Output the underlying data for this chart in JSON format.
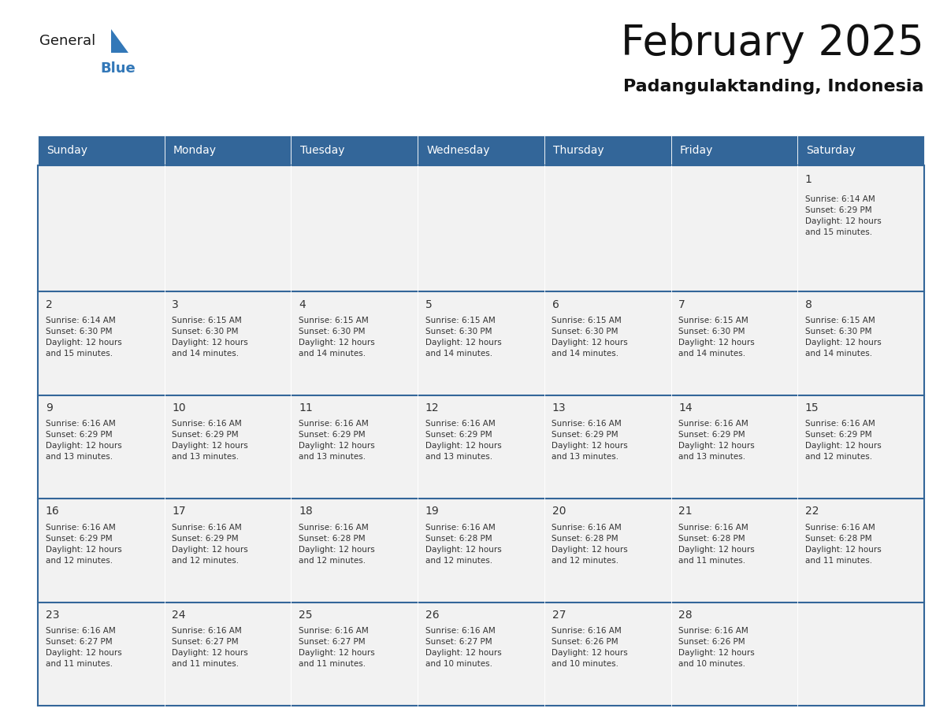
{
  "title": "February 2025",
  "subtitle": "Padangulaktanding, Indonesia",
  "header_bg": "#336699",
  "header_text": "#ffffff",
  "cell_bg": "#f2f2f2",
  "border_color": "#336699",
  "text_color": "#333333",
  "days_of_week": [
    "Sunday",
    "Monday",
    "Tuesday",
    "Wednesday",
    "Thursday",
    "Friday",
    "Saturday"
  ],
  "weeks": [
    [
      {
        "day": null,
        "info": null
      },
      {
        "day": null,
        "info": null
      },
      {
        "day": null,
        "info": null
      },
      {
        "day": null,
        "info": null
      },
      {
        "day": null,
        "info": null
      },
      {
        "day": null,
        "info": null
      },
      {
        "day": 1,
        "info": "Sunrise: 6:14 AM\nSunset: 6:29 PM\nDaylight: 12 hours\nand 15 minutes."
      }
    ],
    [
      {
        "day": 2,
        "info": "Sunrise: 6:14 AM\nSunset: 6:30 PM\nDaylight: 12 hours\nand 15 minutes."
      },
      {
        "day": 3,
        "info": "Sunrise: 6:15 AM\nSunset: 6:30 PM\nDaylight: 12 hours\nand 14 minutes."
      },
      {
        "day": 4,
        "info": "Sunrise: 6:15 AM\nSunset: 6:30 PM\nDaylight: 12 hours\nand 14 minutes."
      },
      {
        "day": 5,
        "info": "Sunrise: 6:15 AM\nSunset: 6:30 PM\nDaylight: 12 hours\nand 14 minutes."
      },
      {
        "day": 6,
        "info": "Sunrise: 6:15 AM\nSunset: 6:30 PM\nDaylight: 12 hours\nand 14 minutes."
      },
      {
        "day": 7,
        "info": "Sunrise: 6:15 AM\nSunset: 6:30 PM\nDaylight: 12 hours\nand 14 minutes."
      },
      {
        "day": 8,
        "info": "Sunrise: 6:15 AM\nSunset: 6:30 PM\nDaylight: 12 hours\nand 14 minutes."
      }
    ],
    [
      {
        "day": 9,
        "info": "Sunrise: 6:16 AM\nSunset: 6:29 PM\nDaylight: 12 hours\nand 13 minutes."
      },
      {
        "day": 10,
        "info": "Sunrise: 6:16 AM\nSunset: 6:29 PM\nDaylight: 12 hours\nand 13 minutes."
      },
      {
        "day": 11,
        "info": "Sunrise: 6:16 AM\nSunset: 6:29 PM\nDaylight: 12 hours\nand 13 minutes."
      },
      {
        "day": 12,
        "info": "Sunrise: 6:16 AM\nSunset: 6:29 PM\nDaylight: 12 hours\nand 13 minutes."
      },
      {
        "day": 13,
        "info": "Sunrise: 6:16 AM\nSunset: 6:29 PM\nDaylight: 12 hours\nand 13 minutes."
      },
      {
        "day": 14,
        "info": "Sunrise: 6:16 AM\nSunset: 6:29 PM\nDaylight: 12 hours\nand 13 minutes."
      },
      {
        "day": 15,
        "info": "Sunrise: 6:16 AM\nSunset: 6:29 PM\nDaylight: 12 hours\nand 12 minutes."
      }
    ],
    [
      {
        "day": 16,
        "info": "Sunrise: 6:16 AM\nSunset: 6:29 PM\nDaylight: 12 hours\nand 12 minutes."
      },
      {
        "day": 17,
        "info": "Sunrise: 6:16 AM\nSunset: 6:29 PM\nDaylight: 12 hours\nand 12 minutes."
      },
      {
        "day": 18,
        "info": "Sunrise: 6:16 AM\nSunset: 6:28 PM\nDaylight: 12 hours\nand 12 minutes."
      },
      {
        "day": 19,
        "info": "Sunrise: 6:16 AM\nSunset: 6:28 PM\nDaylight: 12 hours\nand 12 minutes."
      },
      {
        "day": 20,
        "info": "Sunrise: 6:16 AM\nSunset: 6:28 PM\nDaylight: 12 hours\nand 12 minutes."
      },
      {
        "day": 21,
        "info": "Sunrise: 6:16 AM\nSunset: 6:28 PM\nDaylight: 12 hours\nand 11 minutes."
      },
      {
        "day": 22,
        "info": "Sunrise: 6:16 AM\nSunset: 6:28 PM\nDaylight: 12 hours\nand 11 minutes."
      }
    ],
    [
      {
        "day": 23,
        "info": "Sunrise: 6:16 AM\nSunset: 6:27 PM\nDaylight: 12 hours\nand 11 minutes."
      },
      {
        "day": 24,
        "info": "Sunrise: 6:16 AM\nSunset: 6:27 PM\nDaylight: 12 hours\nand 11 minutes."
      },
      {
        "day": 25,
        "info": "Sunrise: 6:16 AM\nSunset: 6:27 PM\nDaylight: 12 hours\nand 11 minutes."
      },
      {
        "day": 26,
        "info": "Sunrise: 6:16 AM\nSunset: 6:27 PM\nDaylight: 12 hours\nand 10 minutes."
      },
      {
        "day": 27,
        "info": "Sunrise: 6:16 AM\nSunset: 6:26 PM\nDaylight: 12 hours\nand 10 minutes."
      },
      {
        "day": 28,
        "info": "Sunrise: 6:16 AM\nSunset: 6:26 PM\nDaylight: 12 hours\nand 10 minutes."
      },
      {
        "day": null,
        "info": null
      }
    ]
  ],
  "logo_general_color": "#1a1a1a",
  "logo_blue_color": "#3378b8",
  "logo_triangle_color": "#3378b8",
  "title_fontsize": 38,
  "subtitle_fontsize": 16,
  "header_fontsize": 10,
  "day_num_fontsize": 10,
  "info_fontsize": 7.5
}
